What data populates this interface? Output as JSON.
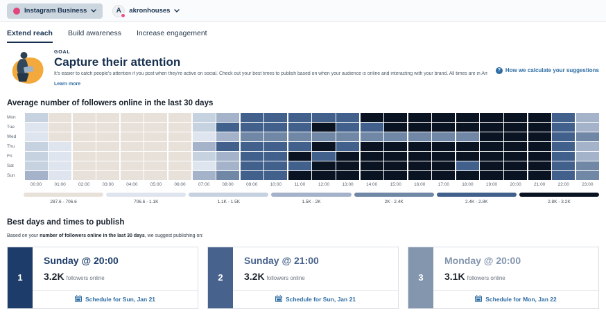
{
  "topbar": {
    "account_switcher": {
      "label": "Instagram Business"
    },
    "profile": {
      "name": "akronhouses",
      "avatar_letter": "A"
    }
  },
  "tabs": [
    {
      "label": "Extend reach",
      "active": true
    },
    {
      "label": "Build awareness",
      "active": false
    },
    {
      "label": "Increase engagement",
      "active": false
    }
  ],
  "goal": {
    "eyebrow": "GOAL",
    "title": "Capture their attention",
    "description": "It's easier to catch people's attention if you post when they're active on social. Check out your best times to publish based on when your audience is online and interacting with your brand. All times are in America/New_York, which is the time zone selected in your account settings.",
    "learn_more": "Learn more",
    "help_link": "How we calculate your suggestions"
  },
  "chart_data": {
    "type": "heatmap",
    "title": "Average number of followers online in the last 30 days",
    "rows": [
      "Mon",
      "Tue",
      "Wed",
      "Thu",
      "Fri",
      "Sat",
      "Sun"
    ],
    "columns": [
      "00:00",
      "01:00",
      "02:00",
      "03:00",
      "04:00",
      "05:00",
      "06:00",
      "07:00",
      "08:00",
      "09:00",
      "10:00",
      "11:00",
      "12:00",
      "13:00",
      "14:00",
      "15:00",
      "16:00",
      "17:00",
      "18:00",
      "19:00",
      "20:00",
      "21:00",
      "22:00",
      "23:00"
    ],
    "legend": [
      {
        "label": "287.6 - 706.6",
        "color": "#e8e1da"
      },
      {
        "label": "706.6 - 1.1K",
        "color": "#dfe5ee"
      },
      {
        "label": "1.1K - 1.5K",
        "color": "#c7d2e1"
      },
      {
        "label": "1.5K - 2K",
        "color": "#a4b3c9"
      },
      {
        "label": "2K - 2.4K",
        "color": "#7187a6"
      },
      {
        "label": "2.4K - 2.8K",
        "color": "#42608c"
      },
      {
        "label": "2.8K - 3.2K",
        "color": "#0a1322"
      }
    ],
    "values_unit": "bucket index into legend (1 = lowest followers online, 7 = highest)",
    "values": [
      [
        3,
        1,
        1,
        1,
        1,
        1,
        1,
        3,
        4,
        6,
        6,
        6,
        6,
        6,
        7,
        7,
        7,
        7,
        7,
        7,
        7,
        7,
        6,
        4
      ],
      [
        2,
        1,
        1,
        1,
        1,
        1,
        1,
        3,
        6,
        6,
        6,
        6,
        7,
        6,
        6,
        7,
        7,
        7,
        7,
        7,
        7,
        7,
        6,
        4
      ],
      [
        2,
        1,
        1,
        1,
        1,
        1,
        1,
        2,
        4,
        5,
        5,
        5,
        5,
        5,
        5,
        5,
        5,
        5,
        5,
        7,
        7,
        7,
        6,
        5
      ],
      [
        3,
        2,
        1,
        1,
        1,
        1,
        1,
        4,
        6,
        6,
        6,
        6,
        7,
        6,
        7,
        7,
        7,
        7,
        7,
        7,
        7,
        7,
        6,
        4
      ],
      [
        3,
        2,
        1,
        1,
        1,
        1,
        1,
        3,
        4,
        6,
        6,
        7,
        6,
        7,
        7,
        7,
        7,
        7,
        7,
        7,
        7,
        7,
        6,
        4
      ],
      [
        3,
        2,
        1,
        1,
        1,
        1,
        1,
        2,
        4,
        6,
        6,
        6,
        7,
        7,
        7,
        7,
        7,
        7,
        6,
        7,
        7,
        7,
        6,
        5
      ],
      [
        4,
        2,
        1,
        1,
        1,
        1,
        1,
        4,
        5,
        6,
        6,
        7,
        7,
        7,
        7,
        7,
        7,
        7,
        7,
        7,
        7,
        7,
        6,
        5
      ]
    ]
  },
  "best_times": {
    "title": "Best days and times to publish",
    "subtitle_prefix": "Based on your ",
    "subtitle_bold": "number of followers online in the last 30 days",
    "subtitle_suffix": ", we suggest publishing on:",
    "suggestions": [
      {
        "rank": "1",
        "title": "Sunday @ 20:00",
        "count": "3.2K",
        "count_label": "followers online",
        "cta": "Schedule for Sun, Jan 21",
        "accent": "#1d3c69"
      },
      {
        "rank": "2",
        "title": "Sunday @ 21:00",
        "count": "3.2K",
        "count_label": "followers online",
        "cta": "Schedule for Sun, Jan 21",
        "accent": "#47628c"
      },
      {
        "rank": "3",
        "title": "Monday @ 20:00",
        "count": "3.1K",
        "count_label": "followers online",
        "cta": "Schedule for Mon, Jan 22",
        "accent": "#8495ae"
      }
    ]
  }
}
